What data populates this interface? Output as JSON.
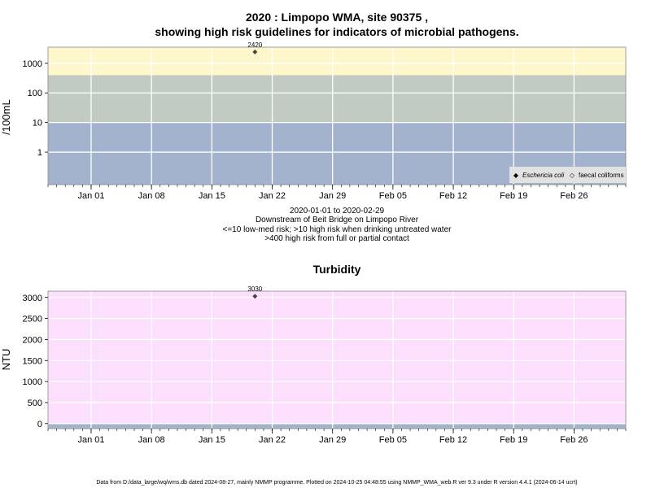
{
  "title_line1": "2020 : Limpopo WMA, site 90375 ,",
  "title_line2": "showing high risk guidelines for indicators of microbial pathogens.",
  "subtitle_lines": [
    "2020-01-01 to 2020-02-29",
    "Downstream of Beit Bridge on Limpopo River",
    "<=10 low-med risk; >10 high risk when drinking untreated water",
    ">400 high risk from full or partial contact"
  ],
  "footer": "Data from D:/data_large/wq/wms.db dated 2024-08-27, mainly NMMP programme. Plotted on 2024-10-25 04:48:55 using NMMP_WMA_web.R ver 9.3 under R version 4.4.1 (2024-06-14 ucrt)",
  "colors": {
    "band_low": "#a3b3cd",
    "band_mid": "#c2cbc1",
    "band_high": "#fdf7cb",
    "turbidity_bg": "#fcdffc",
    "turbidity_low_band": "#a3b3cd",
    "grid": "#ffffff",
    "point": "#444444",
    "legend_bg": "#e2e2e2"
  },
  "chart_data": [
    {
      "type": "scatter",
      "title": "",
      "ylabel": "/100mL",
      "y_scale": "log",
      "ylim": [
        0.08,
        3500
      ],
      "xlim": [
        "2019-12-27",
        "2020-03-03"
      ],
      "x_tick_labels": [
        "Jan 01",
        "Jan 08",
        "Jan 15",
        "Jan 22",
        "Jan 29",
        "Feb 05",
        "Feb 12",
        "Feb 19",
        "Feb 26"
      ],
      "x_tick_dates": [
        "2020-01-01",
        "2020-01-08",
        "2020-01-15",
        "2020-01-22",
        "2020-01-29",
        "2020-02-05",
        "2020-02-12",
        "2020-02-19",
        "2020-02-26"
      ],
      "y_ticks": [
        1,
        10,
        100,
        1000
      ],
      "y_tick_labels": [
        "1",
        "10",
        "100",
        "1000"
      ],
      "risk_bands": [
        {
          "from": 0.08,
          "to": 10,
          "color": "band_low"
        },
        {
          "from": 10,
          "to": 400,
          "color": "band_mid"
        },
        {
          "from": 400,
          "to": 3500,
          "color": "band_high"
        }
      ],
      "series": [
        {
          "name": "Eschericia coli",
          "points": [
            {
              "x": "2020-01-20",
              "y": 2420,
              "label": "2420"
            }
          ]
        },
        {
          "name": "faecal coliforms",
          "points": []
        }
      ],
      "legend_position": "bottom-right",
      "grid": true
    },
    {
      "type": "scatter",
      "title": "Turbidity",
      "ylabel": "NTU",
      "y_scale": "linear",
      "ylim": [
        -120,
        3150
      ],
      "xlim": [
        "2019-12-27",
        "2020-03-03"
      ],
      "x_tick_labels": [
        "Jan 01",
        "Jan 08",
        "Jan 15",
        "Jan 22",
        "Jan 29",
        "Feb 05",
        "Feb 12",
        "Feb 19",
        "Feb 26"
      ],
      "x_tick_dates": [
        "2020-01-01",
        "2020-01-08",
        "2020-01-15",
        "2020-01-22",
        "2020-01-29",
        "2020-02-05",
        "2020-02-12",
        "2020-02-19",
        "2020-02-26"
      ],
      "y_ticks": [
        0,
        500,
        1000,
        1500,
        2000,
        2500,
        3000
      ],
      "y_tick_labels": [
        "0",
        "500",
        "1000",
        "1500",
        "2000",
        "2500",
        "3000"
      ],
      "series": [
        {
          "points": [
            {
              "x": "2020-01-20",
              "y": 3030,
              "label": "3030"
            }
          ]
        }
      ],
      "grid": true
    }
  ]
}
